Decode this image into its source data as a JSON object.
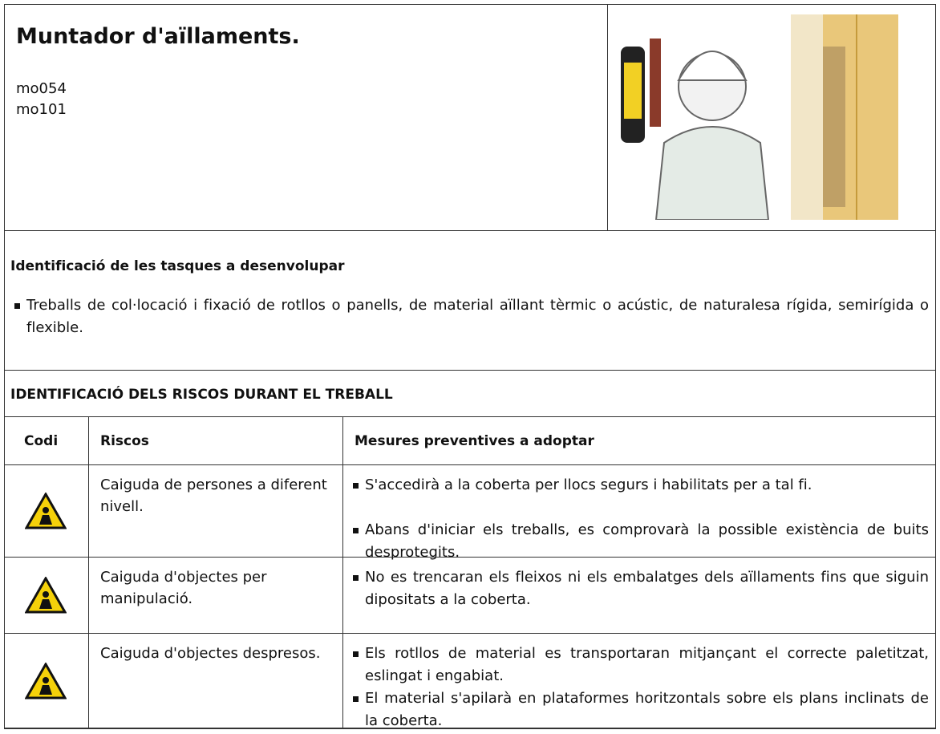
{
  "header": {
    "title": "Muntador d'aïllaments.",
    "codes": [
      "mo054",
      "mo101"
    ]
  },
  "tasks": {
    "title": "Identificació de les tasques a desenvolupar",
    "items": [
      "Treballs de col·locació i fixació de rotllos o panells, de material aïllant tèrmic o acústic, de naturalesa rígida, semirígida o flexible."
    ]
  },
  "risks": {
    "title": "IDENTIFICACIÓ DELS RISCOS DURANT EL TREBALL",
    "columns": [
      "Codi",
      "Riscos",
      "Mesures preventives a adoptar"
    ],
    "rows": [
      {
        "risk": "Caiguda de persones a diferent nivell.",
        "measures": [
          "S'accedirà a la coberta per llocs segurs i habilitats per a tal fi.",
          "Abans d'iniciar els treballs, es comprovarà la possible existència de buits desprotegits."
        ]
      },
      {
        "risk": "Caiguda d'objectes per manipulació.",
        "measures": [
          "No es trencaran els fleixos ni els embalatges dels aïllaments fins que siguin dipositats a la coberta."
        ]
      },
      {
        "risk": "Caiguda d'objectes despresos.",
        "measures": [
          "Els rotllos de material es transportaran mitjançant el correcte paletitzat, eslingat i engabiat.",
          "El material s'apilarà en plataformes horitzontals sobre els plans inclinats de la coberta."
        ]
      }
    ]
  }
}
